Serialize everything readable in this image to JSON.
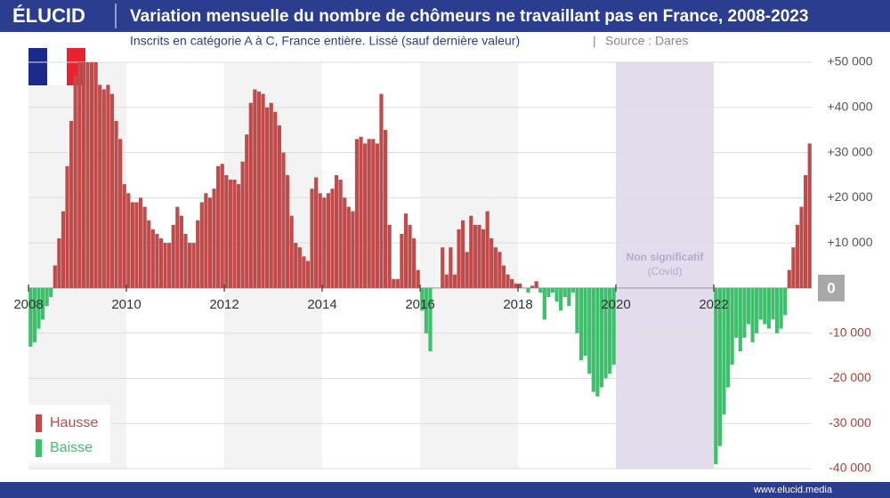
{
  "header": {
    "logo": "ÉLUCID",
    "title": "Variation mensuelle du nombre de chômeurs ne travaillant pas en France, 2008-2023"
  },
  "footer": "www.elucid.media",
  "chart_data": {
    "type": "bar",
    "subtitle": "Inscrits en catégorie A à C, France entière. Lissé (sauf dernière valeur)",
    "source": "Source : Dares",
    "annotations": [
      "Non significatif",
      "(Covid)"
    ],
    "legend": [
      {
        "label": "Hausse",
        "color": "#bf4b4b"
      },
      {
        "label": "Baisse",
        "color": "#3fbf6c"
      }
    ],
    "categories": [
      "2008",
      null,
      null,
      null,
      null,
      null,
      null,
      null,
      null,
      null,
      null,
      null,
      null,
      null,
      null,
      null,
      null,
      null,
      null,
      null,
      null,
      null,
      null,
      null,
      "2010",
      null,
      null,
      null,
      null,
      null,
      null,
      null,
      null,
      null,
      null,
      null,
      null,
      null,
      null,
      null,
      null,
      null,
      null,
      null,
      null,
      null,
      null,
      null,
      "2012",
      null,
      null,
      null,
      null,
      null,
      null,
      null,
      null,
      null,
      null,
      null,
      null,
      null,
      null,
      null,
      null,
      null,
      null,
      null,
      null,
      null,
      null,
      null,
      "2014",
      null,
      null,
      null,
      null,
      null,
      null,
      null,
      null,
      null,
      null,
      null,
      null,
      null,
      null,
      null,
      null,
      null,
      null,
      null,
      null,
      null,
      null,
      null,
      "2016",
      null,
      null,
      null,
      null,
      null,
      null,
      null,
      null,
      null,
      null,
      null,
      null,
      null,
      null,
      null,
      null,
      null,
      null,
      null,
      null,
      null,
      null,
      null,
      "2018",
      null,
      null,
      null,
      null,
      null,
      null,
      null,
      null,
      null,
      null,
      null,
      null,
      null,
      null,
      null,
      null,
      null,
      null,
      null,
      null,
      null,
      null,
      null,
      "2020",
      null,
      null,
      null,
      null,
      null,
      null,
      null,
      null,
      null,
      null,
      null,
      null,
      null,
      null,
      null,
      null,
      null,
      null,
      null,
      null,
      null,
      null,
      null,
      "2022",
      null,
      null,
      null,
      null,
      null,
      null,
      null,
      null,
      null,
      null,
      null,
      null,
      null,
      null,
      null,
      null,
      null,
      null,
      null,
      null,
      null,
      null,
      null
    ],
    "values": [
      -13000,
      -12000,
      -9000,
      -7000,
      -4000,
      -2000,
      5000,
      11000,
      17000,
      27000,
      37000,
      47000,
      50000,
      50000,
      50000,
      50000,
      50000,
      45000,
      44000,
      45000,
      43000,
      37000,
      33000,
      23000,
      21000,
      19000,
      19000,
      20000,
      18000,
      15000,
      13000,
      12000,
      11000,
      10000,
      10000,
      14000,
      18000,
      16000,
      12000,
      10000,
      10000,
      15000,
      19000,
      21000,
      20000,
      22000,
      27000,
      27500,
      25000,
      24000,
      24000,
      23000,
      28000,
      34000,
      41000,
      44000,
      43500,
      43000,
      40000,
      41000,
      39000,
      36000,
      30000,
      25000,
      16000,
      10000,
      9000,
      7000,
      6000,
      22000,
      24500,
      21000,
      20000,
      21000,
      22000,
      25000,
      24000,
      20000,
      18000,
      17000,
      33000,
      33500,
      32000,
      33000,
      33000,
      32000,
      43000,
      35000,
      14000,
      2000,
      2000,
      12000,
      16500,
      14000,
      11000,
      4000,
      -5000,
      -10000,
      -14000,
      0,
      0,
      9000,
      3000,
      9000,
      3000,
      13000,
      15000,
      8000,
      16000,
      14000,
      14000,
      13000,
      17000,
      11000,
      9000,
      8000,
      5000,
      3000,
      2000,
      1000,
      1000,
      0,
      -1000,
      500,
      1500,
      -1000,
      -7000,
      -2000,
      -1000,
      -3000,
      -5000,
      -2000,
      -4000,
      -1000,
      -10000,
      -16000,
      -15000,
      -19000,
      -23000,
      -24000,
      -22000,
      -20000,
      -19000,
      -17000,
      null,
      null,
      null,
      null,
      null,
      null,
      null,
      null,
      null,
      null,
      null,
      null,
      null,
      null,
      null,
      null,
      null,
      null,
      null,
      null,
      null,
      null,
      null,
      null,
      -39000,
      -35000,
      -28000,
      -22000,
      -17000,
      -11000,
      -14000,
      -11000,
      -8000,
      -12000,
      -10000,
      -7000,
      -8000,
      -9000,
      -7000,
      -10000,
      -9000,
      -6000,
      4000,
      9000,
      14000,
      18000,
      25000,
      32000
    ],
    "ylim": [
      -40000,
      50000
    ],
    "yticks": [
      {
        "value": 50000,
        "label": "+50 000"
      },
      {
        "value": 40000,
        "label": "+40 000"
      },
      {
        "value": 30000,
        "label": "+30 000"
      },
      {
        "value": 20000,
        "label": "+20 000"
      },
      {
        "value": 10000,
        "label": "+10 000"
      },
      0,
      {
        "value": -10000,
        "label": "-10 000"
      },
      {
        "value": -20000,
        "label": "-20 000"
      },
      {
        "value": -30000,
        "label": "-30 000"
      },
      {
        "value": -40000,
        "label": "-40 000"
      }
    ],
    "grid": true
  }
}
